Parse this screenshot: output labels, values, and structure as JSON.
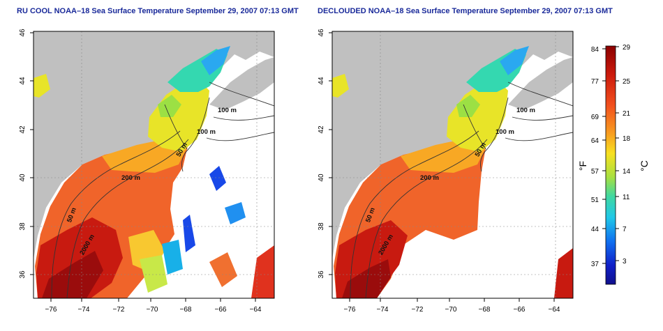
{
  "panels": [
    {
      "title": "RU COOL NOAA–18 Sea Surface Temperature September 29, 2007 07:13 GMT",
      "contour_labels": [
        "100 m",
        "100 m",
        "50 m",
        "200 m",
        "50 m",
        "2000 m"
      ]
    },
    {
      "title": "DECLOUDED NOAA–18 Sea Surface Temperature September 29, 2007 07:13 GMT",
      "contour_labels": [
        "100 m",
        "100 m",
        "50 m",
        "200 m",
        "50 m",
        "2000 m"
      ]
    }
  ],
  "axes": {
    "x_ticks": [
      "−76",
      "−74",
      "−72",
      "−70",
      "−68",
      "−66",
      "−64"
    ],
    "y_ticks": [
      "36",
      "38",
      "40",
      "42",
      "44",
      "46"
    ]
  },
  "colorbar": {
    "f_label": "°F",
    "c_label": "°C",
    "f_ticks": [
      "84",
      "77",
      "69",
      "64",
      "57",
      "51",
      "44",
      "37"
    ],
    "c_ticks": [
      "29",
      "25",
      "21",
      "18",
      "14",
      "11",
      "7",
      "3"
    ]
  },
  "colors": {
    "land": "#c0c0c0",
    "cloud": "#ffffff",
    "title": "#1a2a9a"
  }
}
